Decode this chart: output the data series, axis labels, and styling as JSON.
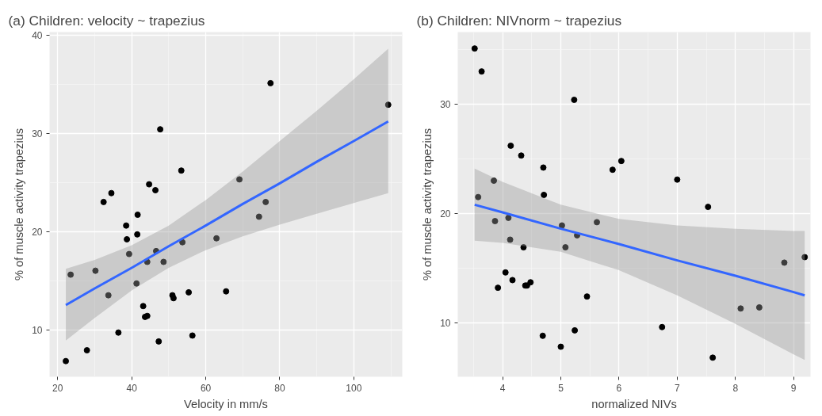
{
  "chart_data": [
    {
      "type": "scatter",
      "title": "(a) Children: velocity ~ trapezius",
      "xlabel": "Velocity in mm/s",
      "ylabel": "% of muscle activity trapezius",
      "xlim": [
        17.8,
        113.1
      ],
      "ylim": [
        5.2,
        40.3
      ],
      "xticks": [
        20,
        40,
        60,
        80,
        100
      ],
      "yticks": [
        10,
        20,
        30,
        40
      ],
      "grid": true,
      "series": [
        {
          "marker": "circle",
          "color": "#000000",
          "x": [
            22.2,
            23.5,
            27.9,
            30.2,
            32.4,
            33.7,
            34.5,
            36.4,
            38.5,
            38.7,
            39.3,
            41.3,
            41.6,
            41.5,
            43.1,
            43.6,
            44.2,
            44.2,
            44.7,
            46.4,
            46.6,
            47.3,
            47.7,
            48.6,
            51.0,
            51.3,
            53.4,
            53.7,
            55.4,
            56.4,
            62.9,
            65.5,
            69.1,
            74.4,
            76.2,
            77.5,
            109.3
          ],
          "values": [
            6.8,
            15.6,
            7.9,
            16.0,
            23.0,
            13.5,
            23.9,
            9.7,
            20.6,
            19.2,
            17.7,
            14.7,
            21.7,
            19.7,
            12.4,
            11.3,
            11.4,
            16.9,
            24.8,
            24.2,
            18.0,
            8.8,
            30.4,
            16.9,
            13.5,
            13.2,
            26.2,
            18.9,
            13.8,
            9.4,
            19.3,
            13.9,
            25.3,
            21.5,
            23.0,
            35.1,
            32.9
          ]
        },
        {
          "type": "line",
          "color": "#3366ff",
          "x": [
            22.2,
            30,
            40,
            50,
            60,
            70,
            80,
            90,
            100,
            109.3
          ],
          "values": [
            12.5,
            14.2,
            16.3,
            18.5,
            20.6,
            22.8,
            24.9,
            27.1,
            29.2,
            31.2
          ],
          "lower": [
            8.9,
            11.2,
            14.0,
            16.3,
            18.1,
            19.5,
            20.7,
            21.8,
            22.9,
            23.9
          ],
          "upper": [
            16.2,
            17.1,
            18.6,
            20.6,
            23.2,
            26.1,
            29.2,
            32.3,
            35.5,
            38.6
          ]
        }
      ]
    },
    {
      "type": "scatter",
      "title": "(b) Children: NIVnorm ~ trapezius",
      "xlabel": "normalized NIVs",
      "ylabel": "% of muscle activity trapezius",
      "xlim": [
        3.23,
        9.29
      ],
      "ylim": [
        5.05,
        36.6
      ],
      "xticks": [
        4,
        5,
        6,
        7,
        8,
        9
      ],
      "yticks": [
        10,
        20,
        30
      ],
      "grid": true,
      "series": [
        {
          "marker": "circle",
          "color": "#000000",
          "x": [
            3.52,
            3.64,
            5.23,
            4.14,
            4.32,
            4.7,
            3.85,
            3.58,
            4.71,
            3.87,
            4.1,
            4.13,
            4.36,
            5.02,
            5.08,
            5.28,
            5.62,
            4.05,
            4.17,
            3.92,
            4.39,
            4.42,
            4.48,
            5.45,
            4.69,
            5.0,
            5.24,
            5.89,
            6.04,
            7.0,
            7.53,
            9.19,
            8.84,
            8.09,
            8.41,
            6.74,
            7.61
          ],
          "values": [
            35.1,
            33.0,
            30.4,
            26.2,
            25.3,
            24.2,
            23.0,
            21.5,
            21.7,
            19.3,
            19.6,
            17.6,
            16.9,
            18.9,
            16.9,
            18.0,
            19.2,
            14.6,
            13.9,
            13.2,
            13.4,
            13.4,
            13.7,
            12.4,
            8.8,
            7.8,
            9.3,
            24.0,
            24.8,
            23.1,
            20.6,
            16.0,
            15.5,
            11.3,
            11.4,
            9.6,
            6.8
          ]
        },
        {
          "type": "line",
          "color": "#3366ff",
          "x": [
            3.52,
            4,
            5,
            6,
            7,
            8,
            9,
            9.19
          ],
          "values": [
            20.8,
            20.1,
            18.6,
            17.2,
            15.7,
            14.3,
            12.8,
            12.5
          ],
          "lower": [
            17.5,
            17.3,
            16.5,
            14.8,
            12.5,
            9.9,
            7.1,
            6.6
          ],
          "upper": [
            24.1,
            22.9,
            20.8,
            19.5,
            18.9,
            18.6,
            18.4,
            18.4
          ]
        }
      ]
    }
  ]
}
